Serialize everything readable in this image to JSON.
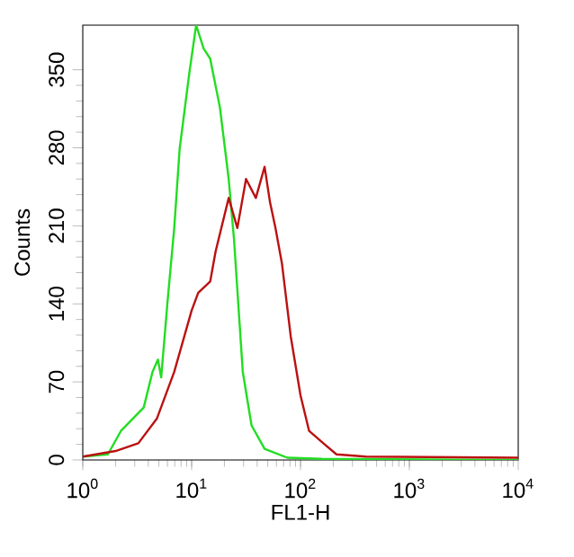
{
  "chart_data": {
    "type": "line",
    "xlabel": "FL1-H",
    "ylabel": "Counts",
    "log": "x",
    "xlim": [
      1,
      10000
    ],
    "ylim": [
      0,
      390
    ],
    "xticks": [
      {
        "value": 1,
        "label": "10$^{0}$"
      },
      {
        "value": 10,
        "label": "10$^{1}$"
      },
      {
        "value": 100,
        "label": "10$^{2}$"
      },
      {
        "value": 1000,
        "label": "10$^{3}$"
      },
      {
        "value": 10000,
        "label": "10$^{4}$"
      }
    ],
    "yticks": [
      0,
      70,
      140,
      210,
      280,
      350
    ],
    "series": [
      {
        "color": "#22dd22",
        "x": [
          1,
          1.7,
          2.24,
          3.63,
          4.37,
          4.9,
          5.25,
          6.03,
          6.92,
          7.76,
          9.55,
          11.0,
          12.9,
          14.8,
          18.2,
          21.9,
          24.5,
          29.5,
          35.5,
          46.8,
          75.9,
          158,
          10000
        ],
        "values": [
          3,
          5,
          26,
          47,
          79,
          90,
          74,
          144,
          208,
          279,
          348,
          390,
          369,
          360,
          316,
          252,
          198,
          79,
          31,
          10,
          2,
          1,
          0
        ]
      },
      {
        "color": "#bb1111",
        "x": [
          1,
          2.0,
          3.24,
          4.79,
          6.92,
          10,
          11.5,
          14.8,
          16.6,
          21.9,
          26.3,
          31.6,
          38.9,
          46.8,
          52.5,
          58.9,
          67.6,
          81.3,
          100,
          120,
          162,
          214,
          398,
          10000
        ],
        "values": [
          3,
          8,
          15,
          37,
          79,
          134,
          150,
          160,
          187,
          235,
          208,
          252,
          235,
          263,
          231,
          208,
          176,
          111,
          58,
          26,
          15,
          5,
          3,
          2
        ]
      }
    ]
  }
}
